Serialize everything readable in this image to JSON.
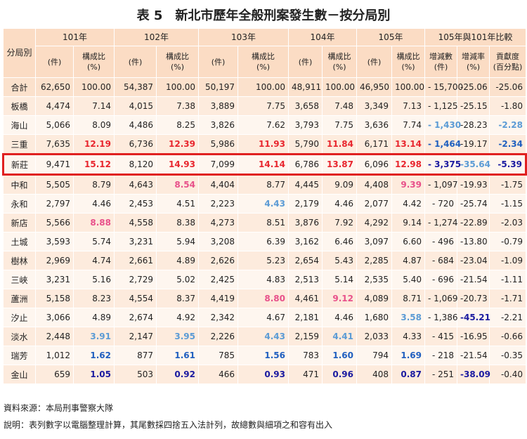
{
  "title": "表 5　新北市歷年全般刑案發生數－按分局別",
  "table": {
    "corner": "分局別",
    "years": [
      "101年",
      "102年",
      "103年",
      "104年",
      "105年"
    ],
    "comparison": "105年與101年比較",
    "sub_headers": [
      [
        "(件)"
      ],
      [
        "構成比",
        "(%)"
      ],
      [
        "(件)"
      ],
      [
        "構成比",
        "(%)"
      ],
      [
        "(件)"
      ],
      [
        "構成比",
        "(%)"
      ],
      [
        "(件)"
      ],
      [
        "構成比",
        "(%)"
      ],
      [
        "(件)"
      ],
      [
        "構成比",
        "(%)"
      ],
      [
        "增減數",
        "(件)"
      ],
      [
        "增減率",
        "(%)"
      ],
      [
        "貢獻度",
        "(百分點)"
      ]
    ],
    "rows": [
      {
        "name": "合計",
        "cells": [
          "62,650",
          "100.00",
          "54,387",
          "100.00",
          "50,197",
          "100.00",
          "48,911",
          "100.00",
          "46,950",
          "100.00",
          "- 15,700",
          "-25.06",
          "-25.06"
        ]
      },
      {
        "name": "板橋",
        "cells": [
          "4,474",
          "7.14",
          "4,015",
          "7.38",
          "3,889",
          "7.75",
          "3,658",
          "7.48",
          "3,349",
          "7.13",
          "- 1,125",
          "-25.15",
          "-1.80"
        ]
      },
      {
        "name": "海山",
        "cells": [
          "5,066",
          "8.09",
          "4,486",
          "8.25",
          "3,826",
          "7.62",
          "3,793",
          "7.75",
          "3,636",
          "7.74",
          {
            "text": "- 1,430",
            "color": "#5b9bd5"
          },
          "-28.23",
          {
            "text": "-2.28",
            "color": "#5b9bd5"
          }
        ]
      },
      {
        "name": "三重",
        "cells": [
          "7,635",
          {
            "text": "12.19",
            "color": "#e8262e"
          },
          "6,736",
          {
            "text": "12.39",
            "color": "#e8262e"
          },
          "5,986",
          {
            "text": "11.93",
            "color": "#e8262e"
          },
          "5,790",
          {
            "text": "11.84",
            "color": "#e8262e"
          },
          "6,171",
          {
            "text": "13.14",
            "color": "#e8262e"
          },
          {
            "text": "- 1,464",
            "color": "#1f5fbf"
          },
          "-19.17",
          {
            "text": "-2.34",
            "color": "#1f5fbf"
          }
        ]
      },
      {
        "name": "新莊",
        "highlighted": true,
        "cells": [
          "9,471",
          {
            "text": "15.12",
            "color": "#e8262e"
          },
          "8,120",
          {
            "text": "14.93",
            "color": "#e8262e"
          },
          "7,099",
          {
            "text": "14.14",
            "color": "#e8262e"
          },
          "6,786",
          {
            "text": "13.87",
            "color": "#e8262e"
          },
          "6,096",
          {
            "text": "12.98",
            "color": "#e8262e"
          },
          {
            "text": "- 3,375",
            "color": "#1a1aa0"
          },
          {
            "text": "-35.64",
            "color": "#5b9bd5"
          },
          {
            "text": "-5.39",
            "color": "#1a1aa0"
          }
        ]
      },
      {
        "name": "中和",
        "cells": [
          "5,505",
          "8.79",
          "4,643",
          {
            "text": "8.54",
            "color": "#e8508a"
          },
          "4,404",
          "8.77",
          "4,445",
          "9.09",
          "4,408",
          {
            "text": "9.39",
            "color": "#e8508a"
          },
          "- 1,097",
          "-19.93",
          "-1.75"
        ]
      },
      {
        "name": "永和",
        "cells": [
          "2,797",
          "4.46",
          "2,453",
          "4.51",
          "2,223",
          {
            "text": "4.43",
            "color": "#5b9bd5"
          },
          "2,179",
          "4.46",
          "2,077",
          "4.42",
          "- 720",
          "-25.74",
          "-1.15"
        ]
      },
      {
        "name": "新店",
        "cells": [
          "5,566",
          {
            "text": "8.88",
            "color": "#e8508a"
          },
          "4,558",
          "8.38",
          "4,273",
          "8.51",
          "3,876",
          "7.92",
          "4,292",
          "9.14",
          "- 1,274",
          "-22.89",
          "-2.03"
        ]
      },
      {
        "name": "土城",
        "cells": [
          "3,593",
          "5.74",
          "3,231",
          "5.94",
          "3,208",
          "6.39",
          "3,162",
          "6.46",
          "3,097",
          "6.60",
          "- 496",
          "-13.80",
          "-0.79"
        ]
      },
      {
        "name": "樹林",
        "cells": [
          "2,969",
          "4.74",
          "2,661",
          "4.89",
          "2,626",
          "5.23",
          "2,654",
          "5.43",
          "2,285",
          "4.87",
          "- 684",
          "-23.04",
          "-1.09"
        ]
      },
      {
        "name": "三峽",
        "cells": [
          "3,231",
          "5.16",
          "2,729",
          "5.02",
          "2,425",
          "4.83",
          "2,513",
          "5.14",
          "2,535",
          "5.40",
          "- 696",
          "-21.54",
          "-1.11"
        ]
      },
      {
        "name": "蘆洲",
        "cells": [
          "5,158",
          "8.23",
          "4,554",
          "8.37",
          "4,419",
          {
            "text": "8.80",
            "color": "#e8508a"
          },
          "4,461",
          {
            "text": "9.12",
            "color": "#e8508a"
          },
          "4,089",
          "8.71",
          "- 1,069",
          "-20.73",
          "-1.71"
        ]
      },
      {
        "name": "汐止",
        "cells": [
          "3,066",
          "4.89",
          "2,674",
          "4.92",
          "2,342",
          "4.67",
          "2,181",
          "4.46",
          "1,680",
          {
            "text": "3.58",
            "color": "#5b9bd5"
          },
          "- 1,386",
          {
            "text": "-45.21",
            "color": "#1a1aa0"
          },
          "-2.21"
        ]
      },
      {
        "name": "淡水",
        "cells": [
          "2,448",
          {
            "text": "3.91",
            "color": "#5b9bd5"
          },
          "2,147",
          {
            "text": "3.95",
            "color": "#5b9bd5"
          },
          "2,226",
          {
            "text": "4.43",
            "color": "#5b9bd5"
          },
          "2,159",
          {
            "text": "4.41",
            "color": "#5b9bd5"
          },
          "2,033",
          "4.33",
          "- 415",
          "-16.95",
          "-0.66"
        ]
      },
      {
        "name": "瑞芳",
        "cells": [
          "1,012",
          {
            "text": "1.62",
            "color": "#1f5fbf"
          },
          "877",
          {
            "text": "1.61",
            "color": "#1f5fbf"
          },
          "785",
          {
            "text": "1.56",
            "color": "#1f5fbf"
          },
          "783",
          {
            "text": "1.60",
            "color": "#1f5fbf"
          },
          "794",
          {
            "text": "1.69",
            "color": "#1f5fbf"
          },
          "- 218",
          "-21.54",
          "-0.35"
        ]
      },
      {
        "name": "金山",
        "cells": [
          "659",
          {
            "text": "1.05",
            "color": "#1a1aa0"
          },
          "503",
          {
            "text": "0.92",
            "color": "#1a1aa0"
          },
          "466",
          {
            "text": "0.93",
            "color": "#1a1aa0"
          },
          "471",
          {
            "text": "0.96",
            "color": "#1a1aa0"
          },
          "408",
          {
            "text": "0.87",
            "color": "#1a1aa0"
          },
          "- 251",
          {
            "text": "-38.09",
            "color": "#1a1aa0"
          },
          "-0.40"
        ]
      }
    ]
  },
  "notes": [
    "資料來源：本局刑事警察大隊",
    "說明：表列數字以電腦整理計算，其尾數採四捨五入法計列，故總數與細項之和容有出入"
  ]
}
